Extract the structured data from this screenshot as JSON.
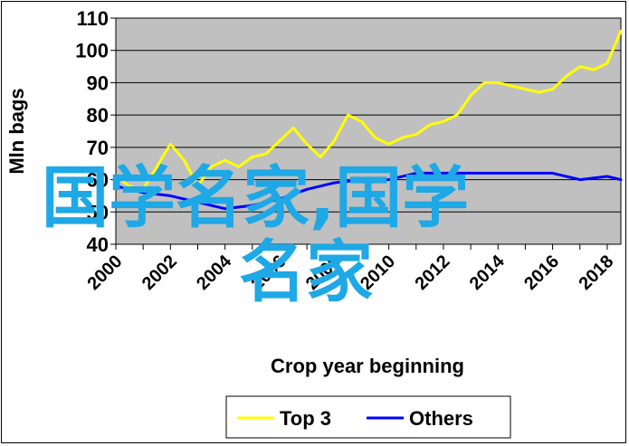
{
  "chart_data": {
    "type": "line",
    "title": "",
    "xlabel": "Crop year beginning",
    "ylabel": "Mln bags",
    "ylim": [
      40,
      110
    ],
    "xlim": [
      2000,
      2018.5
    ],
    "y_ticks": [
      "40",
      "50",
      "60",
      "70",
      "80",
      "90",
      "100",
      "110"
    ],
    "x_ticks": [
      "2000",
      "2002",
      "2004",
      "2006",
      "2008",
      "2010",
      "2012",
      "2014",
      "2016",
      "2018"
    ],
    "grid": true,
    "legend_position": "bottom",
    "series": [
      {
        "name": "Top 3",
        "color": "#ffff00",
        "x": [
          2000,
          2000.5,
          2001,
          2001.5,
          2002,
          2002.5,
          2003,
          2003.5,
          2004,
          2004.5,
          2005,
          2005.5,
          2006,
          2006.5,
          2007,
          2007.5,
          2008,
          2008.5,
          2009,
          2009.5,
          2010,
          2010.5,
          2011,
          2011.5,
          2012,
          2012.5,
          2013,
          2013.5,
          2014,
          2014.5,
          2015,
          2015.5,
          2016,
          2016.5,
          2017,
          2017.5,
          2018,
          2018.5
        ],
        "values": [
          61,
          58,
          57,
          64,
          71,
          66,
          58,
          64,
          66,
          64,
          67,
          68,
          72,
          76,
          71,
          67,
          72,
          80,
          78,
          73,
          71,
          73,
          74,
          77,
          78,
          80,
          86,
          90,
          90,
          89,
          88,
          87,
          88,
          92,
          95,
          94,
          96,
          106
        ]
      },
      {
        "name": "Others",
        "color": "#0000ff",
        "x": [
          2000,
          2001,
          2002,
          2003,
          2004,
          2005,
          2006,
          2007,
          2008,
          2009,
          2010,
          2011,
          2012,
          2013,
          2014,
          2015,
          2016,
          2017,
          2018,
          2018.5
        ],
        "values": [
          58,
          56,
          55,
          53,
          51,
          52,
          54,
          57,
          59,
          60,
          60,
          62,
          62,
          62,
          62,
          62,
          62,
          60,
          61,
          60
        ]
      }
    ],
    "overlay_text": [
      "国学名家,国学",
      "名家"
    ]
  }
}
